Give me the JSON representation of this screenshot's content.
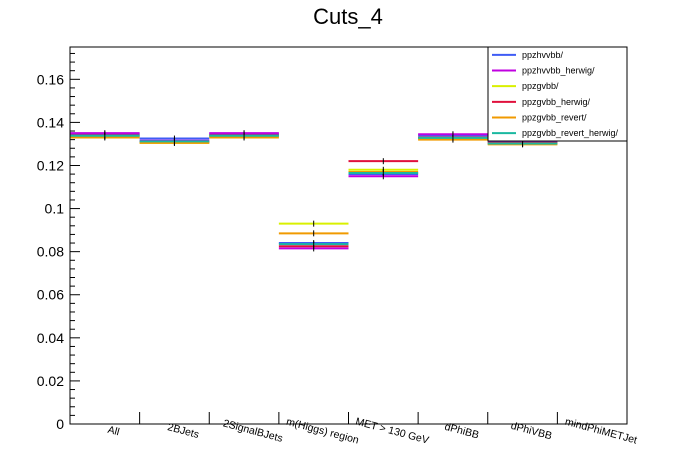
{
  "chart_data": {
    "type": "bar",
    "title": "Cuts_4",
    "xlabel": "",
    "ylabel": "",
    "ylim": [
      0,
      0.175
    ],
    "yticks": [
      "0",
      "0.02",
      "0.04",
      "0.06",
      "0.08",
      "0.1",
      "0.12",
      "0.14",
      "0.16"
    ],
    "ytick_values": [
      0,
      0.02,
      0.04,
      0.06,
      0.08,
      0.1,
      0.12,
      0.14,
      0.16
    ],
    "categories": [
      "All",
      "2BJets",
      "2SignalBJets",
      "m(Higgs) region",
      "MET > 130 GeV",
      "dPhiBB",
      "dPhiVBB",
      "mindPhiMETJet"
    ],
    "legend_position": "top-right",
    "grid": false,
    "series": [
      {
        "name": "ppzhvvbb/",
        "color": "#3f5cf5",
        "values": [
          0.1345,
          0.1325,
          0.1345,
          0.084,
          0.116,
          0.134,
          0.131,
          null
        ]
      },
      {
        "name": "ppzhvvbb_herwig/",
        "color": "#c000e0",
        "values": [
          0.135,
          0.1315,
          0.135,
          0.0815,
          0.115,
          0.1345,
          0.1315,
          null
        ]
      },
      {
        "name": "ppzgvbb/",
        "color": "#d9f000",
        "values": [
          0.1335,
          0.1305,
          0.1335,
          0.093,
          0.118,
          0.1325,
          0.13,
          null
        ]
      },
      {
        "name": "ppzgvbb_herwig/",
        "color": "#e0103c",
        "values": [
          0.134,
          0.131,
          0.134,
          0.0825,
          0.122,
          0.133,
          0.1305,
          null
        ]
      },
      {
        "name": "ppzgvbb_revert/",
        "color": "#f09a00",
        "values": [
          0.133,
          0.1305,
          0.133,
          0.0885,
          0.117,
          0.132,
          0.1298,
          null
        ]
      },
      {
        "name": "ppzgvbb_revert_herwig/",
        "color": "#1ab8a0",
        "values": [
          0.1338,
          0.1312,
          0.1338,
          0.0835,
          0.1165,
          0.1328,
          0.1302,
          null
        ]
      }
    ]
  }
}
